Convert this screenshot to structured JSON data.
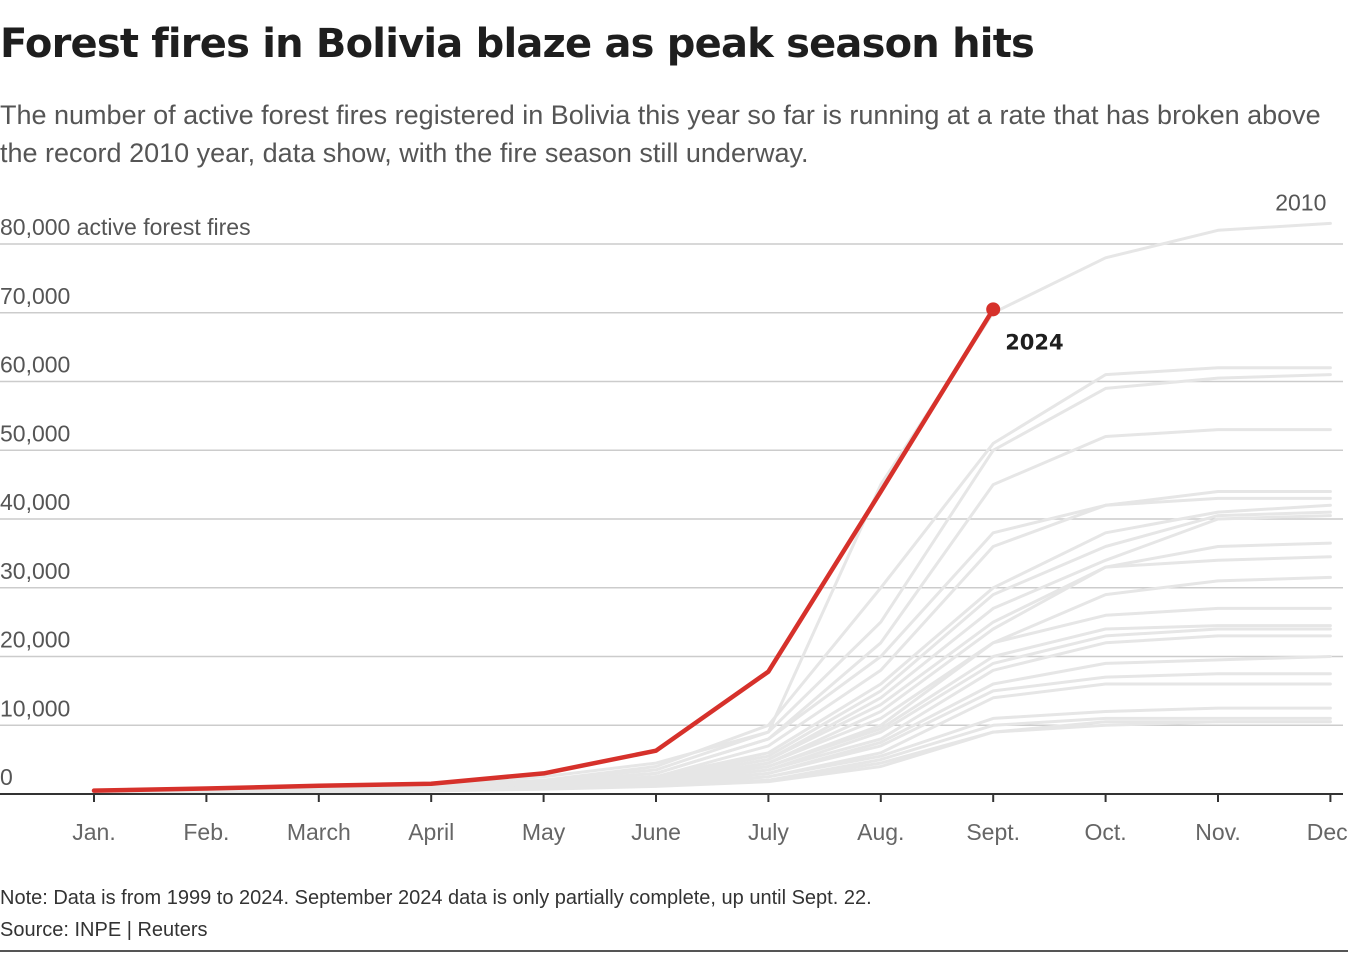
{
  "header": {
    "title": "Forest fires in Bolivia blaze as peak season hits",
    "subtitle": "The number of active forest fires registered in Bolivia this year so far is running at a rate that has broken above the record 2010 year, data show, with the fire season still underway."
  },
  "footer": {
    "note": "Note: Data is from 1999 to 2024. September 2024 data is only partially complete, up until Sept. 22.",
    "source": "Source: INPE | Reuters"
  },
  "colors": {
    "highlight": "#d6312b",
    "background_series": "#e6e6e6",
    "gridline": "#cccccc",
    "axis": "#333333"
  },
  "chart_data": {
    "type": "line",
    "title": "Forest fires in Bolivia blaze as peak season hits",
    "ylabel": "active forest fires",
    "ylim": [
      0,
      80000
    ],
    "grid": true,
    "legend": "none",
    "y_ticks": [
      {
        "value": 0,
        "label": "0"
      },
      {
        "value": 10000,
        "label": "10,000"
      },
      {
        "value": 20000,
        "label": "20,000"
      },
      {
        "value": 30000,
        "label": "30,000"
      },
      {
        "value": 40000,
        "label": "40,000"
      },
      {
        "value": 50000,
        "label": "50,000"
      },
      {
        "value": 60000,
        "label": "60,000"
      },
      {
        "value": 70000,
        "label": "70,000"
      },
      {
        "value": 80000,
        "label": "80,000 active forest fires"
      }
    ],
    "categories": [
      "Jan.",
      "Feb.",
      "March",
      "April",
      "May",
      "June",
      "July",
      "Aug.",
      "Sept.",
      "Oct.",
      "Nov.",
      "Dec."
    ],
    "highlight_series": {
      "name": "2024",
      "values": [
        500,
        800,
        1200,
        1500,
        3000,
        6300,
        17800,
        44000,
        70500
      ],
      "color": "#d6312b"
    },
    "series": [
      {
        "name": "2010",
        "values": [
          300,
          600,
          900,
          1400,
          2500,
          4500,
          9000,
          45000,
          70000,
          78000,
          82000,
          83000
        ]
      },
      {
        "values": [
          200,
          500,
          800,
          1200,
          2000,
          4000,
          10000,
          30000,
          51000,
          61000,
          62000,
          62000
        ]
      },
      {
        "values": [
          200,
          500,
          800,
          1100,
          2000,
          3500,
          9000,
          25000,
          50000,
          59000,
          60500,
          61000
        ]
      },
      {
        "values": [
          200,
          400,
          700,
          1000,
          1800,
          3000,
          8000,
          22000,
          45000,
          52000,
          53000,
          53000
        ]
      },
      {
        "values": [
          200,
          400,
          700,
          1000,
          1700,
          3000,
          8000,
          20000,
          38000,
          42000,
          44000,
          44000
        ]
      },
      {
        "values": [
          150,
          400,
          600,
          900,
          1600,
          2500,
          7000,
          18000,
          36000,
          42000,
          43000,
          43000
        ]
      },
      {
        "values": [
          150,
          400,
          600,
          900,
          1500,
          2500,
          6000,
          16000,
          30000,
          38000,
          41000,
          42000
        ]
      },
      {
        "values": [
          150,
          350,
          600,
          900,
          1500,
          2500,
          5500,
          15000,
          29000,
          36000,
          40500,
          41000
        ]
      },
      {
        "values": [
          150,
          350,
          550,
          850,
          1400,
          2300,
          5000,
          14000,
          27000,
          34000,
          40000,
          40500
        ]
      },
      {
        "values": [
          150,
          350,
          550,
          800,
          1400,
          2200,
          5000,
          13000,
          25000,
          33000,
          36000,
          36500
        ]
      },
      {
        "values": [
          120,
          300,
          500,
          800,
          1300,
          2000,
          4500,
          12000,
          24000,
          33000,
          34000,
          34500
        ]
      },
      {
        "values": [
          120,
          300,
          500,
          800,
          1300,
          2000,
          4500,
          11000,
          22000,
          29000,
          31000,
          31500
        ]
      },
      {
        "values": [
          120,
          300,
          500,
          750,
          1200,
          1900,
          4000,
          10000,
          22000,
          26000,
          27000,
          27000
        ]
      },
      {
        "values": [
          100,
          300,
          450,
          700,
          1200,
          1800,
          4000,
          9500,
          20000,
          24000,
          24500,
          24500
        ]
      },
      {
        "values": [
          100,
          250,
          450,
          700,
          1100,
          1700,
          3500,
          9000,
          19000,
          23000,
          24000,
          24000
        ]
      },
      {
        "values": [
          100,
          250,
          400,
          650,
          1100,
          1600,
          3500,
          8000,
          18000,
          22000,
          23000,
          23000
        ]
      },
      {
        "values": [
          100,
          250,
          400,
          650,
          1000,
          1500,
          3000,
          7500,
          16000,
          19000,
          19500,
          20000
        ]
      },
      {
        "values": [
          100,
          250,
          400,
          600,
          1000,
          1500,
          3000,
          7000,
          15000,
          17000,
          17500,
          17500
        ]
      },
      {
        "values": [
          80,
          200,
          350,
          600,
          900,
          1400,
          2500,
          6000,
          14000,
          16000,
          16000,
          16000
        ]
      },
      {
        "values": [
          80,
          200,
          350,
          550,
          900,
          1300,
          2500,
          5500,
          11000,
          12000,
          12500,
          12500
        ]
      },
      {
        "values": [
          80,
          200,
          300,
          500,
          800,
          1200,
          2000,
          5000,
          10000,
          11000,
          11000,
          11000
        ]
      },
      {
        "values": [
          80,
          200,
          300,
          500,
          800,
          1200,
          2000,
          4500,
          9000,
          10500,
          10500,
          10500
        ]
      },
      {
        "values": [
          60,
          150,
          300,
          450,
          700,
          1100,
          1800,
          4000,
          9000,
          10000,
          10500,
          10500
        ]
      }
    ]
  }
}
